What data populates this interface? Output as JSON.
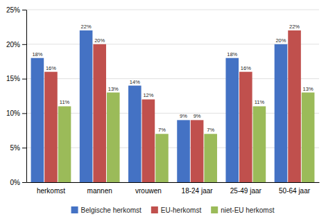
{
  "chart_data": {
    "type": "bar",
    "categories": [
      "herkomst",
      "mannen",
      "vrouwen",
      "18-24 jaar",
      "25-49 jaar",
      "50-64 jaar"
    ],
    "series": [
      {
        "name": "Belgische herkomst",
        "color": "#4472C4",
        "values": [
          18,
          22,
          14,
          9,
          18,
          20
        ],
        "value_labels": [
          "18%",
          "22%",
          "14%",
          "9%",
          "18%",
          "20%"
        ]
      },
      {
        "name": "EU-herkomst",
        "color": "#C0504D",
        "values": [
          16,
          20,
          12,
          9,
          16,
          22
        ],
        "value_labels": [
          "16%",
          "20%",
          "12%",
          "9%",
          "16%",
          "22%"
        ]
      },
      {
        "name": "niet-EU herkomst",
        "color": "#9BBB59",
        "values": [
          11,
          13,
          7,
          7,
          11,
          13
        ],
        "value_labels": [
          "11%",
          "13%",
          "7%",
          "7%",
          "11%",
          "13%"
        ]
      }
    ],
    "ylim": [
      0,
      25
    ],
    "yticks": [
      {
        "value": 0,
        "label": "0%"
      },
      {
        "value": 5,
        "label": "5%"
      },
      {
        "value": 10,
        "label": "10%"
      },
      {
        "value": 15,
        "label": "15%"
      },
      {
        "value": 20,
        "label": "20%"
      },
      {
        "value": 25,
        "label": "25%"
      }
    ],
    "grid": true,
    "legend": "bottom",
    "data_labels": true
  }
}
